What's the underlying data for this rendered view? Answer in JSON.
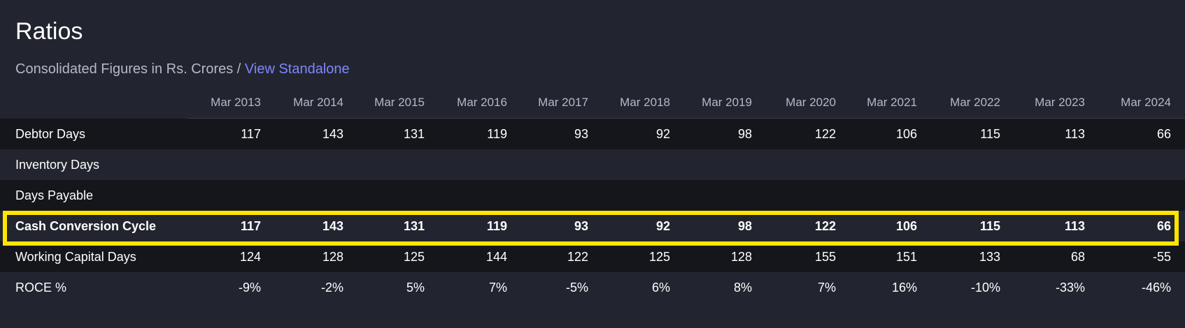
{
  "section": {
    "title": "Ratios",
    "subtitle_text": "Consolidated Figures in Rs. Crores",
    "subtitle_separator": " / ",
    "subtitle_link": "View Standalone"
  },
  "table": {
    "columns": [
      "Mar 2013",
      "Mar 2014",
      "Mar 2015",
      "Mar 2016",
      "Mar 2017",
      "Mar 2018",
      "Mar 2019",
      "Mar 2020",
      "Mar 2021",
      "Mar 2022",
      "Mar 2023",
      "Mar 2024"
    ],
    "rows": [
      {
        "label": "Debtor Days",
        "values": [
          "117",
          "143",
          "131",
          "119",
          "93",
          "92",
          "98",
          "122",
          "106",
          "115",
          "113",
          "66"
        ]
      },
      {
        "label": "Inventory Days",
        "values": [
          "",
          "",
          "",
          "",
          "",
          "",
          "",
          "",
          "",
          "",
          "",
          ""
        ]
      },
      {
        "label": "Days Payable",
        "values": [
          "",
          "",
          "",
          "",
          "",
          "",
          "",
          "",
          "",
          "",
          "",
          ""
        ]
      },
      {
        "label": "Cash Conversion Cycle",
        "values": [
          "117",
          "143",
          "131",
          "119",
          "93",
          "92",
          "98",
          "122",
          "106",
          "115",
          "113",
          "66"
        ]
      },
      {
        "label": "Working Capital Days",
        "values": [
          "124",
          "128",
          "125",
          "144",
          "122",
          "125",
          "128",
          "155",
          "151",
          "133",
          "68",
          "-55"
        ]
      },
      {
        "label": "ROCE %",
        "values": [
          "-9%",
          "-2%",
          "5%",
          "7%",
          "-5%",
          "6%",
          "8%",
          "7%",
          "16%",
          "-10%",
          "-33%",
          "-46%"
        ]
      }
    ]
  },
  "colors": {
    "highlight": "#ffe600",
    "link": "#7f86ff"
  }
}
